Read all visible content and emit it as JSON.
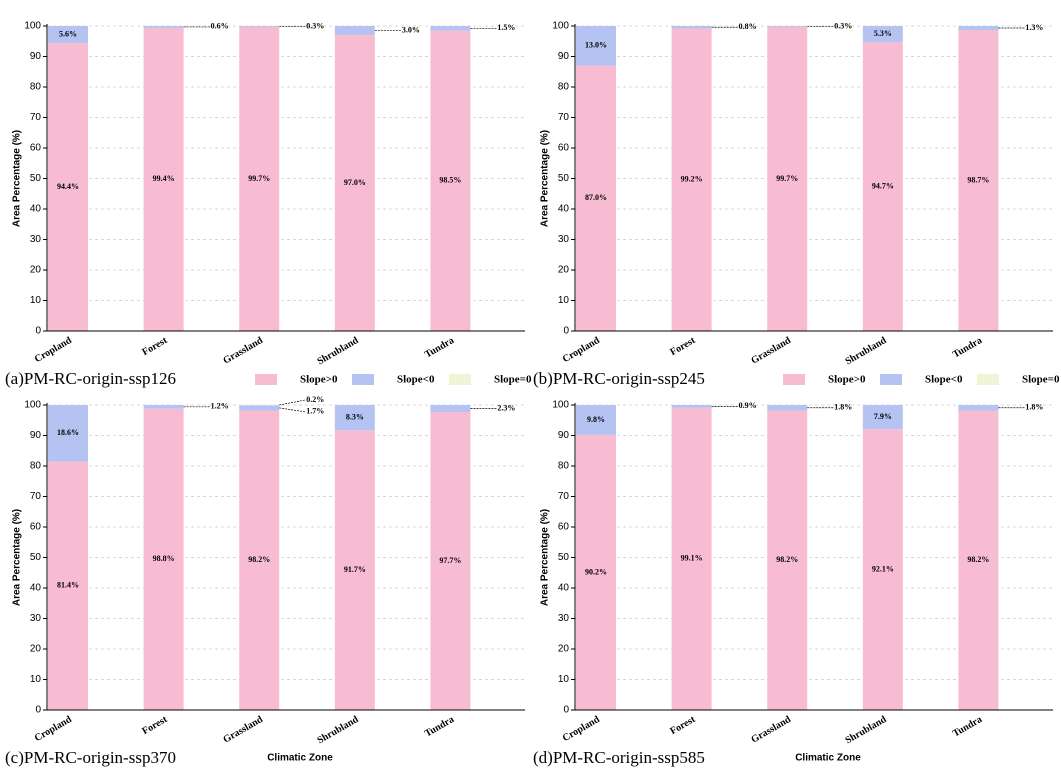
{
  "chart_data": [
    {
      "type": "stacked-bar",
      "title": "(a)PM-RC-origin-ssp126",
      "ylabel": "Area Percentage (%)",
      "categories": [
        "Cropland",
        "Forest",
        "Grassland",
        "Shrubland",
        "Tundra"
      ],
      "series": [
        {
          "name": "Slope>0",
          "color": "#f8bcd2",
          "values": [
            94.4,
            99.4,
            99.7,
            97.0,
            98.5
          ],
          "value_labels": [
            "94.4%",
            "99.4%",
            "99.7%",
            "97.0%",
            "98.5%"
          ]
        },
        {
          "name": "Slope<0",
          "color": "#b5c3f3",
          "values": [
            5.6,
            0.6,
            0.3,
            3.0,
            1.5
          ],
          "value_labels": [
            "5.6%",
            "0.6%",
            "0.3%",
            "3.0%",
            "1.5%"
          ]
        },
        {
          "name": "Slope=0",
          "color": "#eef4d6",
          "values": [
            0,
            0,
            0,
            0,
            0
          ]
        }
      ],
      "ylim": [
        0,
        100
      ],
      "yticks": [
        0,
        10,
        20,
        30,
        40,
        50,
        60,
        70,
        80,
        90,
        100
      ],
      "grid": true,
      "legend": "bottom"
    },
    {
      "type": "stacked-bar",
      "title": "(b)PM-RC-origin-ssp245",
      "ylabel": "Area Percentage (%)",
      "categories": [
        "Cropland",
        "Forest",
        "Grassland",
        "Shrubland",
        "Tundra"
      ],
      "series": [
        {
          "name": "Slope>0",
          "color": "#f8bcd2",
          "values": [
            87.0,
            99.2,
            99.7,
            94.7,
            98.7
          ],
          "value_labels": [
            "87.0%",
            "99.2%",
            "99.7%",
            "94.7%",
            "98.7%"
          ]
        },
        {
          "name": "Slope<0",
          "color": "#b5c3f3",
          "values": [
            13.0,
            0.8,
            0.3,
            5.3,
            1.3
          ],
          "value_labels": [
            "13.0%",
            "0.8%",
            "0.3%",
            "5.3%",
            "1.3%"
          ]
        },
        {
          "name": "Slope=0",
          "color": "#eef4d6",
          "values": [
            0,
            0,
            0,
            0,
            0
          ]
        }
      ],
      "ylim": [
        0,
        100
      ],
      "yticks": [
        0,
        10,
        20,
        30,
        40,
        50,
        60,
        70,
        80,
        90,
        100
      ],
      "grid": true,
      "legend": "bottom"
    },
    {
      "type": "stacked-bar",
      "title": "(c)PM-RC-origin-ssp370",
      "ylabel": "Area Percentage (%)",
      "xlabel": "Climatic Zone",
      "categories": [
        "Cropland",
        "Forest",
        "Grassland",
        "Shrubland",
        "Tundra"
      ],
      "series": [
        {
          "name": "Slope>0",
          "color": "#f8bcd2",
          "values": [
            81.4,
            98.8,
            98.2,
            91.7,
            97.7
          ],
          "value_labels": [
            "81.4%",
            "98.8%",
            "98.2%",
            "91.7%",
            "97.7%"
          ]
        },
        {
          "name": "Slope<0",
          "color": "#b5c3f3",
          "values": [
            18.6,
            1.2,
            1.7,
            8.3,
            2.3
          ],
          "value_labels": [
            "18.6%",
            "1.2%",
            "1.7%",
            "8.3%",
            "2.3%"
          ]
        },
        {
          "name": "Slope=0",
          "color": "#eef4d6",
          "values": [
            0,
            0,
            0.2,
            0,
            0
          ],
          "value_labels": [
            null,
            null,
            "0.2%",
            null,
            null
          ]
        }
      ],
      "ylim": [
        0,
        100
      ],
      "yticks": [
        0,
        10,
        20,
        30,
        40,
        50,
        60,
        70,
        80,
        90,
        100
      ],
      "grid": true
    },
    {
      "type": "stacked-bar",
      "title": "(d)PM-RC-origin-ssp585",
      "ylabel": "Area Percentage (%)",
      "xlabel": "Climatic Zone",
      "categories": [
        "Cropland",
        "Forest",
        "Grassland",
        "Shrubland",
        "Tundra"
      ],
      "series": [
        {
          "name": "Slope>0",
          "color": "#f8bcd2",
          "values": [
            90.2,
            99.1,
            98.2,
            92.1,
            98.2
          ],
          "value_labels": [
            "90.2%",
            "99.1%",
            "98.2%",
            "92.1%",
            "98.2%"
          ]
        },
        {
          "name": "Slope<0",
          "color": "#b5c3f3",
          "values": [
            9.8,
            0.9,
            1.8,
            7.9,
            1.8
          ],
          "value_labels": [
            "9.8%",
            "0.9%",
            "1.8%",
            "7.9%",
            "1.8%"
          ]
        },
        {
          "name": "Slope=0",
          "color": "#eef4d6",
          "values": [
            0,
            0,
            0,
            0,
            0
          ]
        }
      ],
      "ylim": [
        0,
        100
      ],
      "yticks": [
        0,
        10,
        20,
        30,
        40,
        50,
        60,
        70,
        80,
        90,
        100
      ],
      "grid": true
    }
  ]
}
